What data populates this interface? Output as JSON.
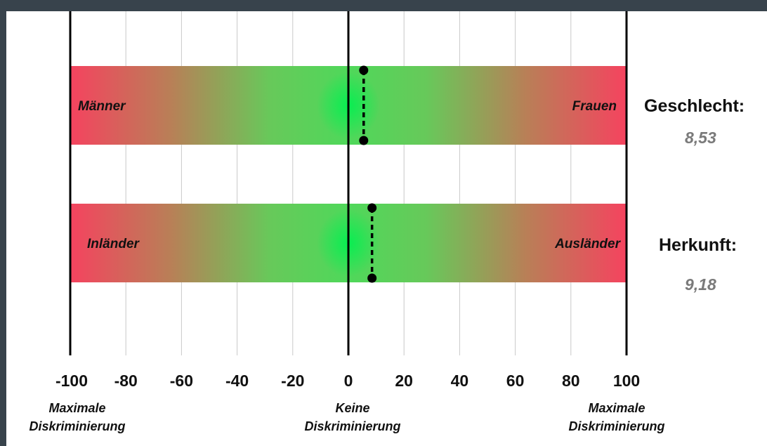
{
  "chart_data": {
    "type": "bar",
    "xlim": [
      -100,
      100
    ],
    "x_ticks": [
      -100,
      -80,
      -60,
      -40,
      -20,
      0,
      20,
      40,
      60,
      80,
      100
    ],
    "grid": true,
    "bottom_labels": [
      {
        "lines": [
          "Maximale",
          "Diskriminierung"
        ],
        "at": -100
      },
      {
        "lines": [
          "Keine",
          "Diskriminierung"
        ],
        "at": 0
      },
      {
        "lines": [
          "Maximale",
          "Diskriminierung"
        ],
        "at": 100
      }
    ],
    "series": [
      {
        "name": "Geschlecht:",
        "value": 8.53,
        "value_label": "8,53",
        "left_label": "Männer",
        "right_label": "Frauen",
        "marker_top_x": 5.5,
        "marker_bottom_x": 5.5
      },
      {
        "name": "Herkunft:",
        "value": 9.18,
        "value_label": "9,18",
        "left_label": "Inländer",
        "right_label": "Ausländer",
        "marker_top_x": 8.5,
        "marker_bottom_x": 8.5
      }
    ],
    "colors": {
      "center": "#00ea4a",
      "green": "#5bd55e",
      "edge": "#f5435f"
    }
  }
}
